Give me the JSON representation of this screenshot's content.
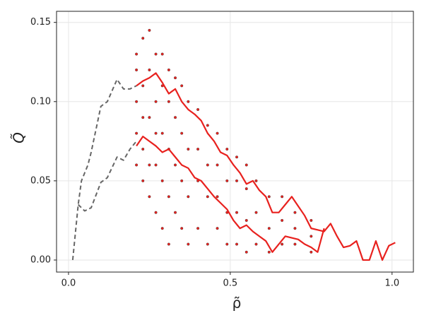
{
  "chart_data": {
    "type": "scatter",
    "xlabel": "ρ̃",
    "ylabel": "Q̃",
    "xlim": [
      -0.037,
      1.066
    ],
    "ylim": [
      -0.0076,
      0.157
    ],
    "xticks": [
      {
        "value": 0,
        "label": "0.0"
      },
      0.5,
      {
        "value": 1,
        "label": "1.0"
      }
    ],
    "yticks": [
      {
        "value": 0,
        "label": "0.00"
      },
      0.05,
      {
        "value": 0.1,
        "label": "0.10"
      },
      0.15
    ],
    "grid": true,
    "series": [
      {
        "type": "scatter",
        "color": "#e8211e",
        "x": [
          0.21,
          0.21,
          0.21,
          0.21,
          0.21,
          0.23,
          0.23,
          0.23,
          0.23,
          0.23,
          0.25,
          0.25,
          0.25,
          0.25,
          0.25,
          0.27,
          0.27,
          0.27,
          0.27,
          0.27,
          0.29,
          0.29,
          0.29,
          0.29,
          0.29,
          0.31,
          0.31,
          0.31,
          0.31,
          0.31,
          0.33,
          0.33,
          0.33,
          0.33,
          0.35,
          0.35,
          0.35,
          0.35,
          0.37,
          0.37,
          0.37,
          0.37,
          0.4,
          0.4,
          0.4,
          0.4,
          0.43,
          0.43,
          0.43,
          0.43,
          0.46,
          0.46,
          0.46,
          0.46,
          0.49,
          0.49,
          0.49,
          0.49,
          0.52,
          0.52,
          0.52,
          0.52,
          0.55,
          0.55,
          0.55,
          0.55,
          0.58,
          0.58,
          0.58,
          0.62,
          0.62,
          0.62,
          0.66,
          0.66,
          0.66,
          0.7,
          0.7,
          0.7,
          0.75,
          0.75,
          0.75
        ],
        "y": [
          0.06,
          0.08,
          0.1,
          0.12,
          0.13,
          0.05,
          0.07,
          0.09,
          0.11,
          0.14,
          0.04,
          0.06,
          0.09,
          0.12,
          0.145,
          0.03,
          0.06,
          0.08,
          0.1,
          0.13,
          0.02,
          0.05,
          0.08,
          0.11,
          0.13,
          0.01,
          0.04,
          0.07,
          0.1,
          0.12,
          0.03,
          0.06,
          0.09,
          0.115,
          0.02,
          0.05,
          0.08,
          0.11,
          0.01,
          0.04,
          0.07,
          0.1,
          0.02,
          0.05,
          0.07,
          0.095,
          0.01,
          0.04,
          0.06,
          0.085,
          0.02,
          0.04,
          0.06,
          0.08,
          0.01,
          0.03,
          0.05,
          0.07,
          0.01,
          0.03,
          0.05,
          0.065,
          0.005,
          0.025,
          0.045,
          0.06,
          0.01,
          0.03,
          0.05,
          0.005,
          0.02,
          0.04,
          0.01,
          0.025,
          0.04,
          0.01,
          0.02,
          0.03,
          0.005,
          0.015,
          0.025
        ]
      },
      {
        "type": "line",
        "color": "#666666",
        "dashed": true,
        "x": [
          0.013,
          0.03,
          0.04,
          0.06,
          0.07,
          0.1,
          0.12,
          0.15,
          0.17,
          0.19,
          0.21
        ],
        "y": [
          0.0,
          0.035,
          0.05,
          0.06,
          0.068,
          0.097,
          0.1,
          0.114,
          0.108,
          0.108,
          0.11
        ]
      },
      {
        "type": "line",
        "color": "#666666",
        "dashed": true,
        "x": [
          0.03,
          0.05,
          0.07,
          0.1,
          0.12,
          0.15,
          0.17,
          0.19,
          0.21
        ],
        "y": [
          0.035,
          0.031,
          0.033,
          0.049,
          0.052,
          0.065,
          0.063,
          0.07,
          0.075
        ]
      },
      {
        "type": "line",
        "color": "#e8211e",
        "dashed": false,
        "x": [
          0.21,
          0.23,
          0.25,
          0.27,
          0.29,
          0.31,
          0.33,
          0.35,
          0.37,
          0.39,
          0.41,
          0.43,
          0.45,
          0.47,
          0.49,
          0.51,
          0.53,
          0.55,
          0.57,
          0.59,
          0.61,
          0.63,
          0.65,
          0.67,
          0.69,
          0.71,
          0.73,
          0.75,
          0.77,
          0.79,
          0.81,
          0.83,
          0.85,
          0.87,
          0.89,
          0.91,
          0.93,
          0.95,
          0.97,
          0.99,
          1.01
        ],
        "y": [
          0.11,
          0.113,
          0.115,
          0.118,
          0.112,
          0.105,
          0.108,
          0.1,
          0.095,
          0.092,
          0.088,
          0.08,
          0.075,
          0.068,
          0.066,
          0.06,
          0.055,
          0.048,
          0.05,
          0.044,
          0.04,
          0.03,
          0.03,
          0.035,
          0.04,
          0.034,
          0.028,
          0.02,
          0.019,
          0.018,
          0.023,
          0.015,
          0.008,
          0.009,
          0.012,
          0.0,
          0.0,
          0.012,
          0.0,
          0.009,
          0.011
        ]
      },
      {
        "type": "line",
        "color": "#e8211e",
        "dashed": false,
        "x": [
          0.21,
          0.23,
          0.25,
          0.27,
          0.29,
          0.31,
          0.33,
          0.35,
          0.37,
          0.39,
          0.41,
          0.43,
          0.45,
          0.47,
          0.49,
          0.51,
          0.53,
          0.55,
          0.57,
          0.59,
          0.61,
          0.63,
          0.65,
          0.67,
          0.69,
          0.71,
          0.73,
          0.75,
          0.77,
          0.79
        ],
        "y": [
          0.072,
          0.078,
          0.075,
          0.072,
          0.068,
          0.07,
          0.065,
          0.06,
          0.058,
          0.052,
          0.05,
          0.045,
          0.04,
          0.036,
          0.032,
          0.025,
          0.02,
          0.022,
          0.018,
          0.015,
          0.012,
          0.005,
          0.01,
          0.015,
          0.014,
          0.013,
          0.01,
          0.008,
          0.005,
          0.02
        ]
      }
    ]
  }
}
